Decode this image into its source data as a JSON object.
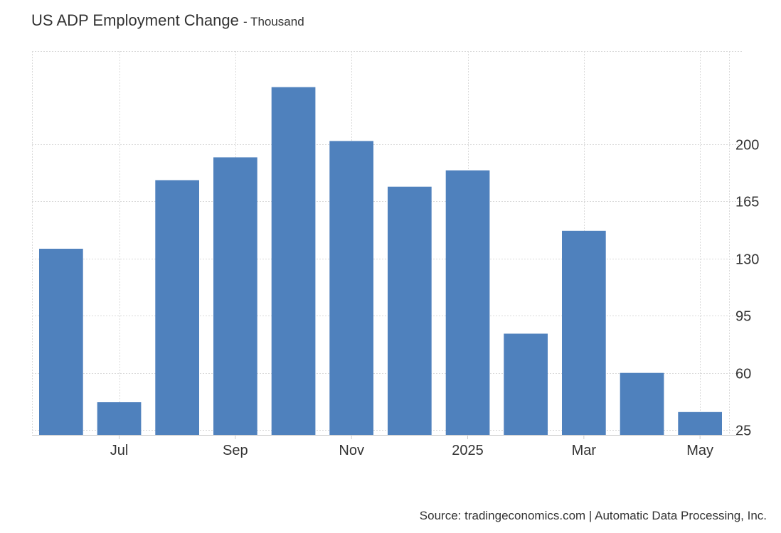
{
  "header": {
    "title": "US ADP Employment Change",
    "subtitle": "- Thousand"
  },
  "footer": {
    "source": "Source: tradingeconomics.com | Automatic Data Processing, Inc."
  },
  "colors": {
    "bar": "#4f81bd",
    "grid": "#d9d9d9",
    "axis": "#cccccc",
    "text": "#333333"
  },
  "chart_data": {
    "type": "bar",
    "title": "US ADP Employment Change",
    "subtitle": "- Thousand",
    "xlabel": "",
    "ylabel": "",
    "categories": [
      "2024-06",
      "2024-07",
      "2024-08",
      "2024-09",
      "2024-10",
      "2024-11",
      "2024-12",
      "2025-01",
      "2025-02",
      "2025-03",
      "2025-04",
      "2025-05"
    ],
    "values": [
      136,
      42,
      178,
      192,
      235,
      202,
      174,
      184,
      84,
      147,
      60,
      36
    ],
    "x_tick_labels": [
      {
        "category": "2024-07",
        "label": "Jul"
      },
      {
        "category": "2024-09",
        "label": "Sep"
      },
      {
        "category": "2024-11",
        "label": "Nov"
      },
      {
        "category": "2025-01",
        "label": "2025"
      },
      {
        "category": "2025-03",
        "label": "Mar"
      },
      {
        "category": "2025-05",
        "label": "May"
      }
    ],
    "y_ticks": [
      25,
      60,
      95,
      130,
      165,
      200
    ],
    "ylim": [
      22,
      257
    ],
    "y_axis_side": "right",
    "grid": true,
    "legend": "none"
  }
}
